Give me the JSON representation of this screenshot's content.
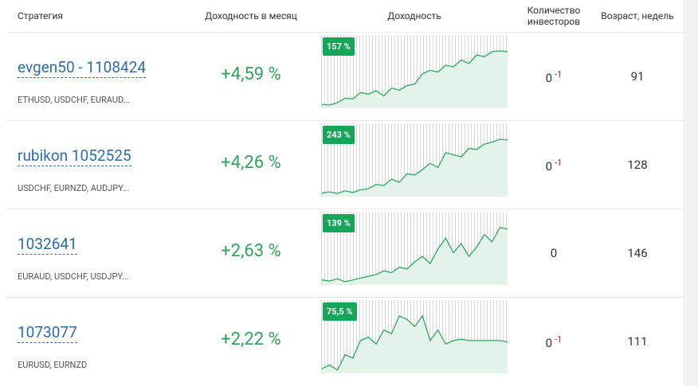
{
  "header": {
    "strategy": "Стратегия",
    "monthly": "Доходность в месяц",
    "chart": "Доходность",
    "investors": "Количество инвесторов",
    "age": "Возраст, недель"
  },
  "rows": [
    {
      "name": "evgen50 - 1108424",
      "pairs": "ETHUSD, USDCHF, EURAUD...",
      "monthly": "+4,59 %",
      "badge": "157 %",
      "investors": 0,
      "investors_change": -1,
      "age": 91,
      "profit": [
        0,
        -2,
        5,
        18,
        16,
        35,
        30,
        40,
        25,
        48,
        42,
        55,
        60,
        90,
        100,
        95,
        115,
        110,
        130,
        120,
        145,
        140,
        155,
        157,
        155
      ]
    },
    {
      "name": "rubikon 1052525",
      "pairs": "USDCHF, EURNZD, AUDJPY...",
      "monthly": "+4,26 %",
      "badge": "243 %",
      "investors": 0,
      "investors_change": -1,
      "age": 128,
      "profit": [
        -10,
        -5,
        -12,
        0,
        -8,
        5,
        10,
        30,
        25,
        55,
        40,
        80,
        75,
        100,
        130,
        110,
        180,
        170,
        160,
        200,
        195,
        220,
        230,
        243,
        240
      ]
    },
    {
      "name": "1032641",
      "pairs": "EURAUD, USDCHF, USDJPY...",
      "monthly": "+2,63 %",
      "badge": "139 %",
      "investors": 0,
      "age": 146,
      "profit": [
        -5,
        -8,
        -2,
        -10,
        -5,
        0,
        5,
        10,
        20,
        15,
        30,
        25,
        45,
        60,
        40,
        80,
        110,
        70,
        95,
        60,
        85,
        120,
        100,
        139,
        135
      ]
    },
    {
      "name": "1073077",
      "pairs": "EURUSD, EURNZD",
      "monthly": "+2,22 %",
      "badge": "75,5 %",
      "investors": 0,
      "investors_change": -1,
      "age": 111,
      "profit": [
        0,
        5,
        -2,
        20,
        15,
        40,
        45,
        35,
        55,
        50,
        75,
        70,
        60,
        75,
        40,
        55,
        35,
        40,
        42,
        40,
        40,
        40,
        40,
        40,
        38
      ]
    }
  ]
}
